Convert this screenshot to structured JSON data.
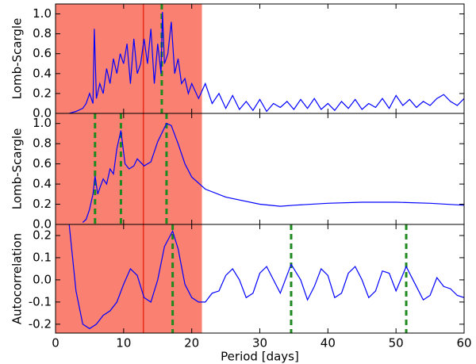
{
  "chart_data": [
    {
      "type": "line",
      "y_label": "Lomb-Scargle",
      "xlim": [
        0,
        60
      ],
      "ylim": [
        0,
        1.1
      ],
      "yticks": [
        {
          "value": 0,
          "label": "0.0"
        },
        0.2,
        0.4,
        0.6,
        0.8,
        {
          "value": 1,
          "label": "1.0"
        }
      ],
      "shaded_region": [
        0,
        21.5
      ],
      "shade_color": "#fa8072",
      "vlines": [
        {
          "style": "solid",
          "color": "#e8301c",
          "values": [
            12.9
          ]
        },
        {
          "style": "dashed",
          "color": "#1e8a1e",
          "values": [
            15.6
          ]
        }
      ],
      "color": "#0000ff",
      "x": [
        2,
        3,
        4,
        4.5,
        5,
        5.5,
        5.7,
        6,
        6.5,
        7,
        7.5,
        8,
        8.5,
        9,
        9.5,
        10,
        10.5,
        11,
        11.5,
        12,
        12.5,
        13,
        13.5,
        14,
        14.5,
        15,
        15.5,
        15.7,
        16,
        16.5,
        17,
        17.5,
        18,
        18.5,
        19,
        19.5,
        20,
        21,
        22,
        23,
        24,
        25,
        26,
        27,
        28,
        29,
        30,
        31,
        32,
        33,
        34,
        35,
        36,
        37,
        38,
        39,
        40,
        41,
        42,
        43,
        44,
        45,
        46,
        47,
        48,
        49,
        50,
        51,
        52,
        53,
        54,
        55,
        56,
        57,
        58,
        59,
        60
      ],
      "values": [
        0,
        0.02,
        0.05,
        0.1,
        0.2,
        0.1,
        0.85,
        0.15,
        0.3,
        0.2,
        0.45,
        0.3,
        0.55,
        0.4,
        0.6,
        0.5,
        0.7,
        0.3,
        0.75,
        0.4,
        0.5,
        0.75,
        0.5,
        0.85,
        0.3,
        0.7,
        0.4,
        1.02,
        0.5,
        0.6,
        0.92,
        0.4,
        0.55,
        0.3,
        0.35,
        0.2,
        0.3,
        0.15,
        0.3,
        0.1,
        0.2,
        0.05,
        0.18,
        0.04,
        0.12,
        0.03,
        0.14,
        0.02,
        0.1,
        0.06,
        0.12,
        0.04,
        0.14,
        0.05,
        0.15,
        0.04,
        0.1,
        0.03,
        0.12,
        0.05,
        0.14,
        0.04,
        0.1,
        0.06,
        0.15,
        0.05,
        0.18,
        0.08,
        0.14,
        0.06,
        0.12,
        0.08,
        0.15,
        0.19,
        0.12,
        0.08,
        0.15
      ]
    },
    {
      "type": "line",
      "y_label": "Lomb-Scargle",
      "xlim": [
        0,
        60
      ],
      "ylim": [
        0,
        1.1
      ],
      "yticks": [
        {
          "value": 0,
          "label": "0.0"
        },
        0.2,
        0.4,
        0.6,
        0.8,
        {
          "value": 1,
          "label": "1.0"
        }
      ],
      "shaded_region": [
        0,
        21.5
      ],
      "shade_color": "#fa8072",
      "vlines": [
        {
          "style": "solid",
          "color": "#e8301c",
          "values": [
            12.9
          ]
        },
        {
          "style": "dashed",
          "color": "#1e8a1e",
          "values": [
            5.8,
            9.6,
            16.3
          ]
        }
      ],
      "color": "#0000ff",
      "x": [
        4,
        4.5,
        5,
        5.5,
        5.8,
        6.2,
        6.6,
        7,
        7.5,
        8,
        8.5,
        9,
        9.6,
        10.2,
        10.8,
        11.5,
        12,
        13,
        14,
        15,
        16.3,
        17,
        18,
        19,
        20,
        22,
        25,
        30,
        33,
        35,
        40,
        45,
        50,
        55,
        60
      ],
      "values": [
        0.02,
        0.05,
        0.15,
        0.3,
        0.48,
        0.3,
        0.38,
        0.45,
        0.4,
        0.55,
        0.5,
        0.75,
        0.93,
        0.6,
        0.55,
        0.58,
        0.65,
        0.58,
        0.62,
        0.82,
        1.0,
        0.98,
        0.8,
        0.6,
        0.47,
        0.35,
        0.27,
        0.2,
        0.18,
        0.19,
        0.21,
        0.22,
        0.22,
        0.21,
        0.19
      ]
    },
    {
      "type": "line",
      "y_label": "Autocorrelation",
      "x_label": "Period [days]",
      "xlim": [
        0,
        60
      ],
      "ylim": [
        -0.24,
        0.25
      ],
      "xticks": [
        0,
        10,
        20,
        30,
        40,
        50,
        60
      ],
      "yticks": [
        0.2,
        0.1,
        {
          "value": 0,
          "label": "0.0"
        },
        -0.1,
        -0.2
      ],
      "shaded_region": [
        0,
        21.5
      ],
      "shade_color": "#fa8072",
      "vlines": [
        {
          "style": "solid",
          "color": "#e8301c",
          "values": [
            12.9
          ]
        },
        {
          "style": "dashed",
          "color": "#1e8a1e",
          "values": [
            17.2,
            34.6,
            51.5
          ]
        }
      ],
      "color": "#0000ff",
      "x": [
        2,
        2.5,
        3,
        4,
        5,
        6,
        7,
        8,
        9,
        10,
        11,
        12,
        13,
        14,
        15,
        16,
        17.2,
        18,
        19,
        20,
        21,
        22,
        23,
        24,
        25,
        26,
        27,
        28,
        29,
        30,
        31,
        32,
        33,
        34.6,
        36,
        37,
        38,
        39,
        40,
        41,
        42,
        43,
        44,
        45,
        46,
        47,
        48,
        49,
        50,
        51.5,
        53,
        54,
        55,
        56,
        57,
        58,
        59,
        60
      ],
      "values": [
        0.25,
        0.1,
        -0.05,
        -0.2,
        -0.22,
        -0.2,
        -0.16,
        -0.14,
        -0.1,
        -0.02,
        0.05,
        0.02,
        -0.08,
        -0.1,
        0.0,
        0.15,
        0.22,
        0.14,
        -0.02,
        -0.08,
        -0.1,
        -0.1,
        -0.06,
        -0.05,
        0.02,
        0.05,
        0.0,
        -0.08,
        -0.06,
        0.03,
        0.06,
        0.0,
        -0.06,
        0.07,
        0.0,
        -0.09,
        -0.03,
        0.05,
        0.02,
        -0.08,
        -0.06,
        0.03,
        0.06,
        0.0,
        -0.08,
        -0.05,
        0.04,
        0.03,
        -0.05,
        0.06,
        -0.03,
        -0.09,
        -0.07,
        0.01,
        -0.03,
        -0.04,
        -0.07,
        -0.08
      ]
    }
  ]
}
